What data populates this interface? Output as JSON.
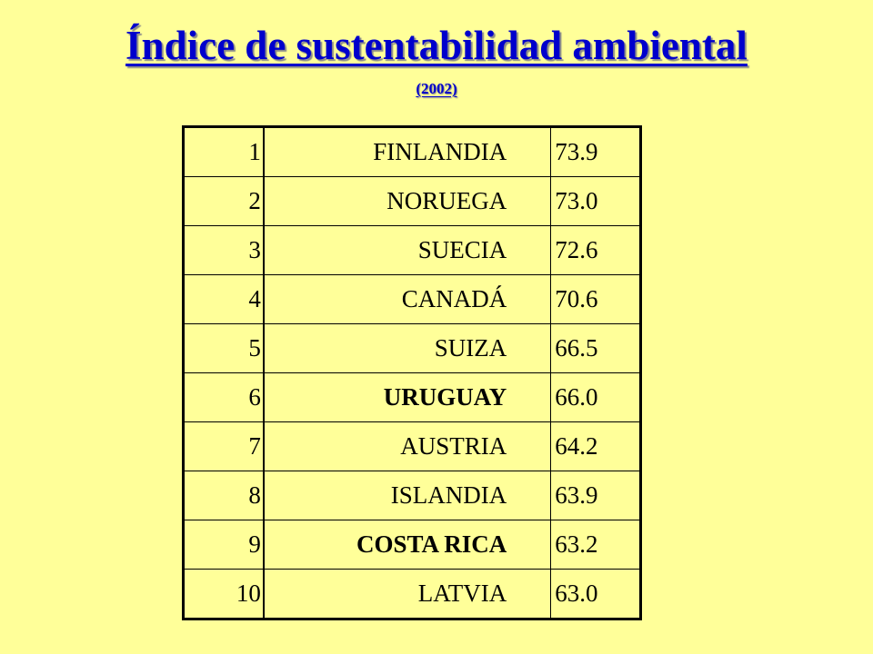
{
  "slide": {
    "title": "Índice de sustentabilidad ambiental",
    "subtitle": "(2002)",
    "title_color": "#0000cc",
    "background_color": "#ffff99"
  },
  "table": {
    "rows": [
      {
        "rank": "1",
        "country": "FINLANDIA",
        "value": "73.9",
        "bold": false
      },
      {
        "rank": "2",
        "country": "NORUEGA",
        "value": "73.0",
        "bold": false
      },
      {
        "rank": "3",
        "country": "SUECIA",
        "value": "72.6",
        "bold": false
      },
      {
        "rank": "4",
        "country": "CANADÁ",
        "value": "70.6",
        "bold": false
      },
      {
        "rank": "5",
        "country": "SUIZA",
        "value": "66.5",
        "bold": false
      },
      {
        "rank": "6",
        "country": "URUGUAY",
        "value": "66.0",
        "bold": true
      },
      {
        "rank": "7",
        "country": "AUSTRIA",
        "value": "64.2",
        "bold": false
      },
      {
        "rank": "8",
        "country": "ISLANDIA",
        "value": "63.9",
        "bold": false
      },
      {
        "rank": "9",
        "country": "COSTA RICA",
        "value": "63.2",
        "bold": true
      },
      {
        "rank": "10",
        "country": "LATVIA",
        "value": "63.0",
        "bold": false
      }
    ]
  }
}
